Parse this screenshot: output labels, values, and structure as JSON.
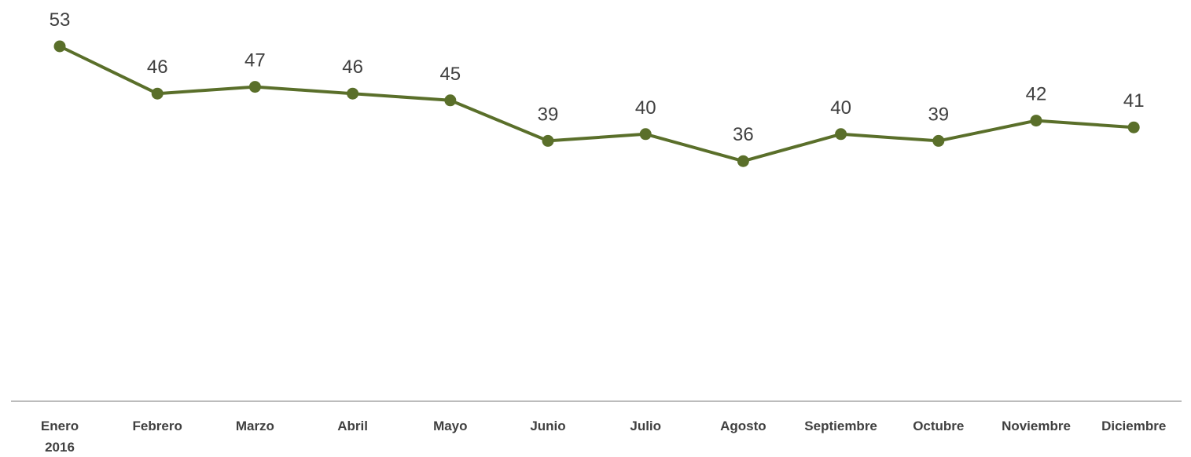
{
  "chart_data": {
    "type": "line",
    "title": "",
    "xlabel": "",
    "ylabel": "",
    "categories": [
      "Enero\n2016",
      "Febrero",
      "Marzo",
      "Abril",
      "Mayo",
      "Junio",
      "Julio",
      "Agosto",
      "Septiembre",
      "Octubre",
      "Noviembre",
      "Diciembre"
    ],
    "series": [
      {
        "values": [
          53,
          46,
          47,
          46,
          45,
          39,
          40,
          36,
          40,
          39,
          42,
          41
        ]
      }
    ],
    "data_labels": true,
    "grid": false,
    "legend": "none",
    "y_axis_visible": false,
    "line_color": "#5a6f2a",
    "axis_color": "#a6a6a6",
    "text_color": "#404040"
  }
}
